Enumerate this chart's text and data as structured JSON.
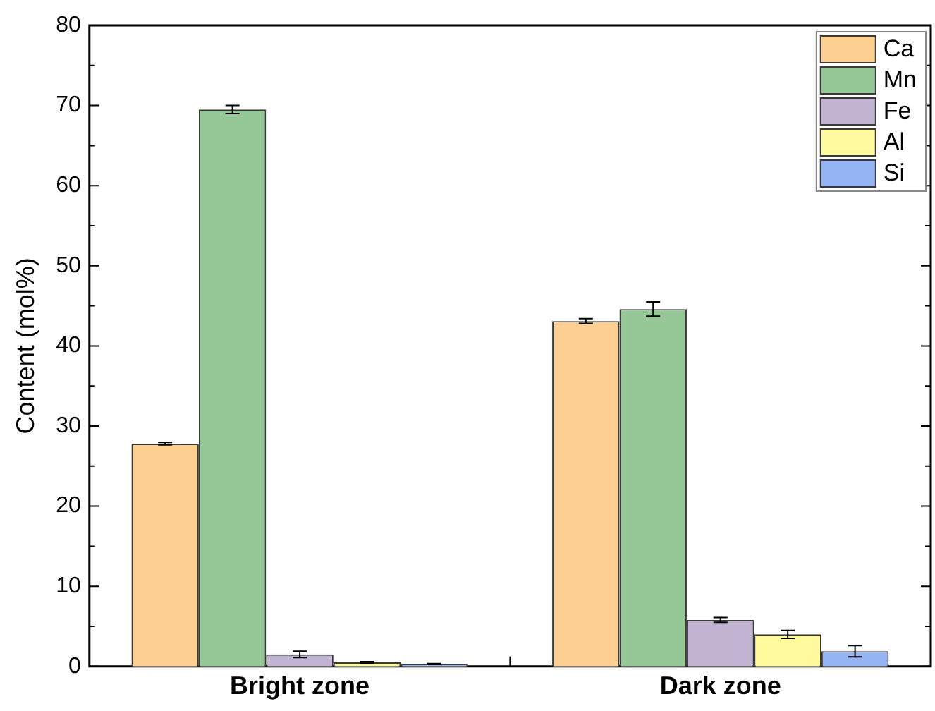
{
  "chart_data": {
    "type": "bar",
    "ylabel": "Content (mol%)",
    "categories": [
      "Bright zone",
      "Dark zone"
    ],
    "series": [
      {
        "name": "Ca",
        "color": "#fdd092",
        "values": [
          27.8,
          43.1
        ],
        "errors": [
          0.15,
          0.3
        ]
      },
      {
        "name": "Mn",
        "color": "#95c896",
        "values": [
          69.5,
          44.6
        ],
        "errors": [
          0.5,
          0.9
        ]
      },
      {
        "name": "Fe",
        "color": "#c2b3d2",
        "values": [
          1.5,
          5.8
        ],
        "errors": [
          0.4,
          0.3
        ]
      },
      {
        "name": "Al",
        "color": "#fffa9e",
        "values": [
          0.5,
          4.0
        ],
        "errors": [
          0.1,
          0.5
        ]
      },
      {
        "name": "Si",
        "color": "#95b4f4",
        "values": [
          0.3,
          1.9
        ],
        "errors": [
          0.05,
          0.7
        ]
      }
    ],
    "ylim": [
      0,
      80
    ],
    "yticks": [
      0,
      {
        "value": 5,
        "label": null
      },
      10,
      {
        "value": 15,
        "label": null
      },
      20,
      {
        "value": 25,
        "label": null
      },
      30,
      {
        "value": 35,
        "label": null
      },
      40,
      {
        "value": 45,
        "label": null
      },
      50,
      {
        "value": 55,
        "label": null
      },
      60,
      {
        "value": 65,
        "label": null
      },
      70,
      {
        "value": 75,
        "label": null
      },
      80
    ],
    "grid": false,
    "legend": "top right"
  }
}
